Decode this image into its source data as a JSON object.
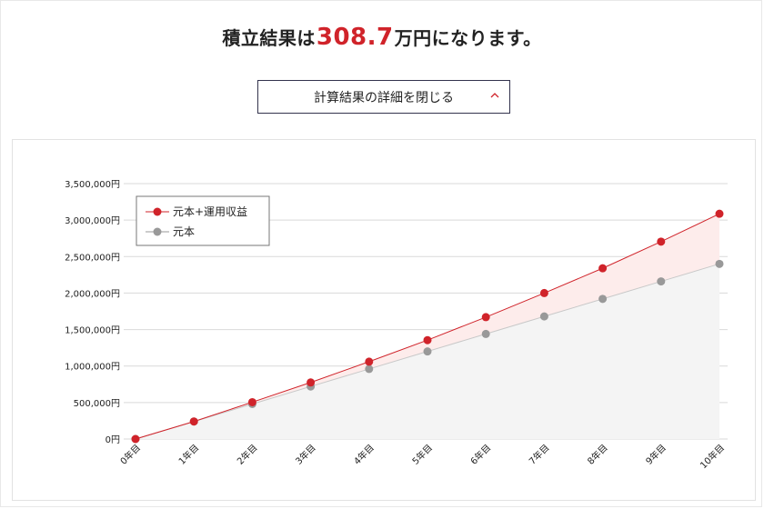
{
  "header": {
    "prefix": "積立結果は",
    "amount": "308.7",
    "suffix": "万円になります。"
  },
  "toggle": {
    "label": "計算結果の詳細を閉じる",
    "icon": "chevron-up-icon"
  },
  "colors": {
    "accent": "#d0232a",
    "principal": "#999999",
    "fill_total": "#fdeceb",
    "fill_principal": "#f4f4f4",
    "grid": "#d9d9d9"
  },
  "chart_data": {
    "type": "line",
    "categories": [
      "0年目",
      "1年目",
      "2年目",
      "3年目",
      "4年目",
      "5年目",
      "6年目",
      "7年目",
      "8年目",
      "9年目",
      "10年目"
    ],
    "series": [
      {
        "name": "元本+運用収益",
        "values": [
          0,
          240000,
          505000,
          775000,
          1060000,
          1355000,
          1670000,
          2000000,
          2340000,
          2705000,
          3087000
        ]
      },
      {
        "name": "元本",
        "values": [
          0,
          240000,
          480000,
          720000,
          960000,
          1200000,
          1440000,
          1680000,
          1920000,
          2160000,
          2400000
        ]
      }
    ],
    "ylim": [
      0,
      3500000
    ],
    "y_ticks": [
      0,
      500000,
      1000000,
      1500000,
      2000000,
      2500000,
      3000000,
      3500000
    ],
    "y_tick_labels": [
      "0円",
      "500,000円",
      "1,000,000円",
      "1,500,000円",
      "2,000,000円",
      "2,500,000円",
      "3,000,000円",
      "3,500,000円"
    ],
    "grid": true,
    "legend_position": "top-left",
    "title": "",
    "xlabel": "",
    "ylabel": ""
  }
}
